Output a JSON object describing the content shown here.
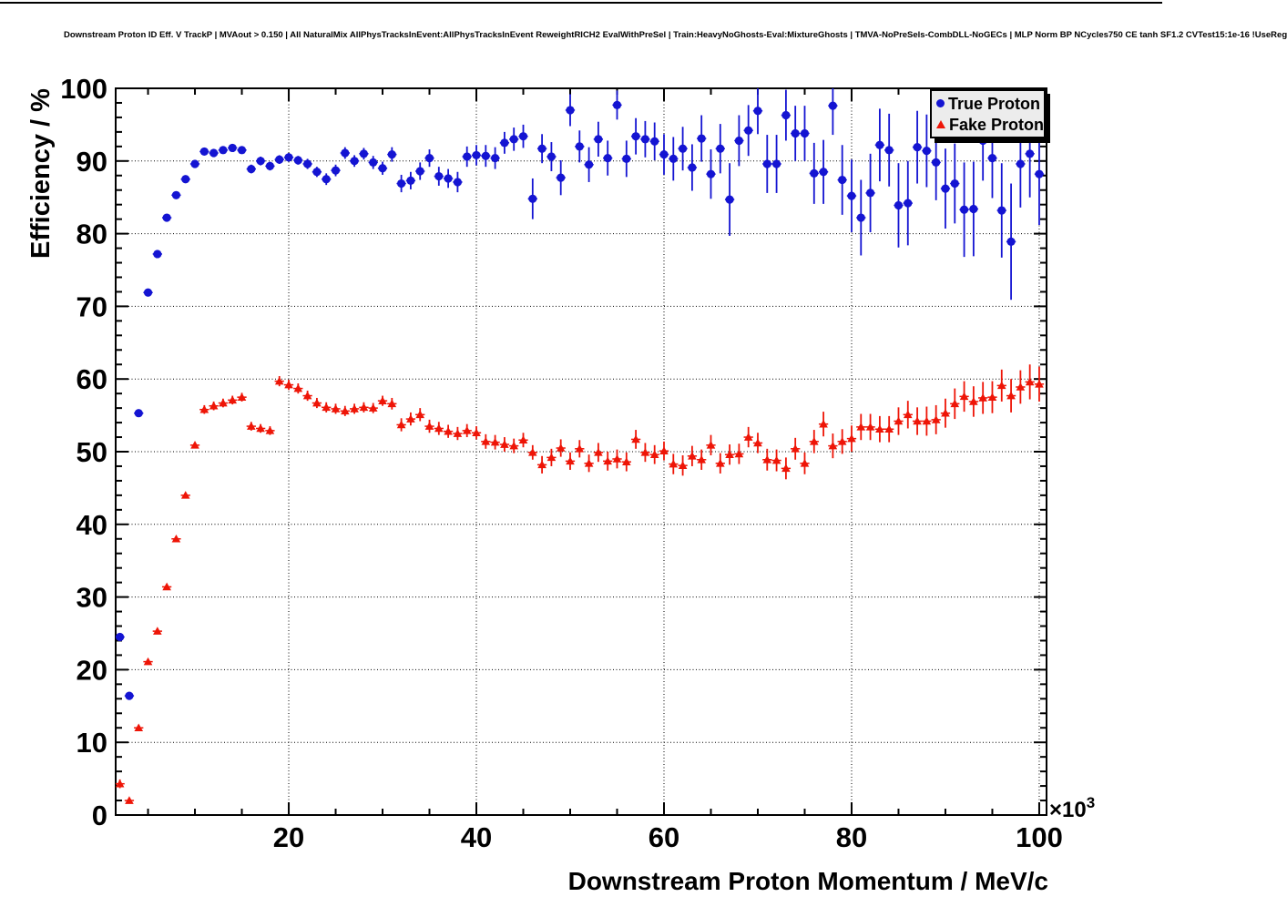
{
  "title": "Downstream Proton ID Eff. V TrackP | MVAout > 0.150 | All NaturalMix AllPhysTracksInEvent:AllPhysTracksInEvent ReweightRICH2 EvalWithPreSel | Train:HeavyNoGhosts-Eval:MixtureGhosts | TMVA-NoPreSels-CombDLL-NoGECs | MLP Norm BP NCycles750 CE tanh SF1.2 CVTest15:1e-16 !UseReg",
  "legend": {
    "entries": [
      {
        "label": "True Proton",
        "marker": "circle"
      },
      {
        "label": "Fake Proton",
        "marker": "triangle"
      }
    ]
  },
  "chart_data": {
    "type": "scatter",
    "title": "Downstream Proton ID Eff. V TrackP | MVAout > 0.150 | All NaturalMix AllPhysTracksInEvent:AllPhysTracksInEvent ReweightRICH2 EvalWithPreSel | Train:HeavyNoGhosts-Eval:MixtureGhosts | TMVA-NoPreSels-CombDLL-NoGECs | MLP Norm BP NCycles750 CE tanh SF1.2 CVTest15:1e-16 !UseReg",
    "xlabel": "Downstream Proton Momentum / MeV/c",
    "ylabel": "Efficiency / %",
    "x_scale_label": {
      "base": "×10",
      "exponent": "3"
    },
    "xlim": [
      1.55,
      100.78
    ],
    "ylim": [
      0,
      100
    ],
    "x_ticks": [
      20,
      40,
      60,
      80,
      100
    ],
    "x_minor_step": 5,
    "y_ticks": [
      0,
      10,
      20,
      30,
      40,
      50,
      60,
      70,
      80,
      90,
      100
    ],
    "y_minor_step": 2,
    "grid": true,
    "legend_position": "top-right",
    "xerr_half_width": 0.5,
    "series": [
      {
        "name": "True Proton",
        "marker": "circle",
        "color": "#1414d2",
        "points": [
          [
            2,
            24.5,
            0.5
          ],
          [
            3,
            16.4,
            0.5
          ],
          [
            4,
            55.3,
            0.5
          ],
          [
            5,
            71.9,
            0.5
          ],
          [
            6,
            77.2,
            0.5
          ],
          [
            7,
            82.2,
            0.5
          ],
          [
            8,
            85.3,
            0.4
          ],
          [
            9,
            87.5,
            0.4
          ],
          [
            10,
            89.6,
            0.4
          ],
          [
            11,
            91.3,
            0.4
          ],
          [
            12,
            91.1,
            0.4
          ],
          [
            13,
            91.5,
            0.4
          ],
          [
            14,
            91.8,
            0.4
          ],
          [
            15,
            91.5,
            0.5
          ],
          [
            16,
            88.9,
            0.6
          ],
          [
            17,
            90.0,
            0.6
          ],
          [
            18,
            89.3,
            0.6
          ],
          [
            19,
            90.2,
            0.6
          ],
          [
            20,
            90.5,
            0.6
          ],
          [
            21,
            90.1,
            0.6
          ],
          [
            22,
            89.6,
            0.7
          ],
          [
            23,
            88.5,
            0.7
          ],
          [
            24,
            87.5,
            0.8
          ],
          [
            25,
            88.7,
            0.8
          ],
          [
            26,
            91.1,
            0.8
          ],
          [
            27,
            90.0,
            0.8
          ],
          [
            28,
            91.0,
            0.8
          ],
          [
            29,
            89.8,
            0.9
          ],
          [
            30,
            89.0,
            0.9
          ],
          [
            31,
            90.9,
            1.0
          ],
          [
            32,
            86.9,
            1.2
          ],
          [
            33,
            87.3,
            1.2
          ],
          [
            34,
            88.6,
            1.2
          ],
          [
            35,
            90.4,
            1.2
          ],
          [
            36,
            87.9,
            1.3
          ],
          [
            37,
            87.6,
            1.3
          ],
          [
            38,
            87.1,
            1.4
          ],
          [
            39,
            90.6,
            1.4
          ],
          [
            40,
            90.8,
            1.4
          ],
          [
            41,
            90.7,
            1.5
          ],
          [
            42,
            90.4,
            1.5
          ],
          [
            43,
            92.5,
            1.5
          ],
          [
            44,
            93.0,
            1.6
          ],
          [
            45,
            93.4,
            1.6
          ],
          [
            46,
            84.8,
            2.8
          ],
          [
            47,
            91.7,
            2.0
          ],
          [
            48,
            90.6,
            2.0
          ],
          [
            49,
            87.7,
            2.4
          ],
          [
            50,
            97.0,
            2.2
          ],
          [
            51,
            92.0,
            2.2
          ],
          [
            52,
            89.5,
            2.4
          ],
          [
            53,
            93.0,
            2.4
          ],
          [
            54,
            90.4,
            2.4
          ],
          [
            55,
            97.7,
            2.0
          ],
          [
            56,
            90.3,
            2.5
          ],
          [
            57,
            93.4,
            2.5
          ],
          [
            58,
            93.0,
            2.5
          ],
          [
            59,
            92.7,
            2.6
          ],
          [
            60,
            90.9,
            2.8
          ],
          [
            61,
            90.3,
            3.0
          ],
          [
            62,
            91.7,
            3.0
          ],
          [
            63,
            89.1,
            3.2
          ],
          [
            64,
            93.1,
            3.2
          ],
          [
            65,
            88.2,
            3.4
          ],
          [
            66,
            91.7,
            3.4
          ],
          [
            67,
            84.7,
            5.0
          ],
          [
            68,
            92.8,
            3.5
          ],
          [
            69,
            94.2,
            3.5
          ],
          [
            70,
            96.9,
            3.2
          ],
          [
            71,
            89.6,
            4.0
          ],
          [
            72,
            89.6,
            4.0
          ],
          [
            73,
            96.3,
            3.5
          ],
          [
            74,
            93.8,
            3.8
          ],
          [
            75,
            93.8,
            3.8
          ],
          [
            76,
            88.3,
            4.2
          ],
          [
            77,
            88.5,
            4.4
          ],
          [
            78,
            97.6,
            4.0
          ],
          [
            79,
            87.4,
            4.8
          ],
          [
            80,
            85.2,
            5.0
          ],
          [
            81,
            82.2,
            5.2
          ],
          [
            82,
            85.6,
            5.4
          ],
          [
            83,
            92.2,
            5.0
          ],
          [
            84,
            91.5,
            5.0
          ],
          [
            85,
            83.9,
            5.8
          ],
          [
            86,
            84.2,
            5.8
          ],
          [
            87,
            91.9,
            5.0
          ],
          [
            88,
            91.4,
            5.0
          ],
          [
            89,
            89.8,
            5.2
          ],
          [
            90,
            86.2,
            5.5
          ],
          [
            91,
            86.9,
            5.5
          ],
          [
            92,
            83.3,
            6.5
          ],
          [
            93,
            83.4,
            6.5
          ],
          [
            94,
            92.8,
            5.5
          ],
          [
            95,
            90.4,
            5.5
          ],
          [
            96,
            83.2,
            6.5
          ],
          [
            97,
            78.9,
            8.0
          ],
          [
            98,
            89.6,
            6.0
          ],
          [
            99,
            91.0,
            6.0
          ],
          [
            100,
            88.2,
            7.0
          ]
        ]
      },
      {
        "name": "Fake Proton",
        "marker": "triangle",
        "color": "#ee1507",
        "points": [
          [
            2,
            4.3,
            0.6
          ],
          [
            3,
            2.0,
            0.4
          ],
          [
            4,
            12.0,
            0.5
          ],
          [
            5,
            21.1,
            0.5
          ],
          [
            6,
            25.3,
            0.5
          ],
          [
            7,
            31.4,
            0.5
          ],
          [
            8,
            38.0,
            0.5
          ],
          [
            9,
            44.0,
            0.5
          ],
          [
            10,
            50.9,
            0.5
          ],
          [
            11,
            55.8,
            0.6
          ],
          [
            12,
            56.3,
            0.6
          ],
          [
            13,
            56.7,
            0.6
          ],
          [
            14,
            57.1,
            0.6
          ],
          [
            15,
            57.5,
            0.6
          ],
          [
            16,
            53.5,
            0.6
          ],
          [
            17,
            53.2,
            0.6
          ],
          [
            18,
            52.9,
            0.6
          ],
          [
            19,
            59.7,
            0.7
          ],
          [
            20,
            59.2,
            0.7
          ],
          [
            21,
            58.7,
            0.7
          ],
          [
            22,
            57.7,
            0.7
          ],
          [
            23,
            56.7,
            0.7
          ],
          [
            24,
            56.1,
            0.7
          ],
          [
            25,
            55.9,
            0.7
          ],
          [
            26,
            55.6,
            0.7
          ],
          [
            27,
            55.9,
            0.7
          ],
          [
            28,
            56.1,
            0.7
          ],
          [
            29,
            56.0,
            0.7
          ],
          [
            30,
            57.0,
            0.7
          ],
          [
            31,
            56.6,
            0.8
          ],
          [
            32,
            53.7,
            0.9
          ],
          [
            33,
            54.5,
            0.9
          ],
          [
            34,
            55.1,
            0.9
          ],
          [
            35,
            53.5,
            0.9
          ],
          [
            36,
            53.2,
            0.9
          ],
          [
            37,
            52.8,
            0.9
          ],
          [
            38,
            52.5,
            0.9
          ],
          [
            39,
            52.9,
            0.9
          ],
          [
            40,
            52.6,
            0.9
          ],
          [
            41,
            51.4,
            1.0
          ],
          [
            42,
            51.3,
            1.0
          ],
          [
            43,
            51.0,
            1.0
          ],
          [
            44,
            50.8,
            1.0
          ],
          [
            45,
            51.6,
            1.0
          ],
          [
            46,
            49.9,
            1.0
          ],
          [
            47,
            48.2,
            1.2
          ],
          [
            48,
            49.2,
            1.2
          ],
          [
            49,
            50.5,
            1.2
          ],
          [
            50,
            48.7,
            1.2
          ],
          [
            51,
            50.4,
            1.2
          ],
          [
            52,
            48.4,
            1.2
          ],
          [
            53,
            49.9,
            1.3
          ],
          [
            54,
            48.7,
            1.3
          ],
          [
            55,
            49.0,
            1.3
          ],
          [
            56,
            48.6,
            1.3
          ],
          [
            57,
            51.7,
            1.3
          ],
          [
            58,
            49.9,
            1.3
          ],
          [
            59,
            49.6,
            1.3
          ],
          [
            60,
            50.1,
            1.3
          ],
          [
            61,
            48.3,
            1.4
          ],
          [
            62,
            48.1,
            1.4
          ],
          [
            63,
            49.4,
            1.4
          ],
          [
            64,
            48.9,
            1.4
          ],
          [
            65,
            50.9,
            1.4
          ],
          [
            66,
            48.4,
            1.4
          ],
          [
            67,
            49.6,
            1.4
          ],
          [
            68,
            49.7,
            1.4
          ],
          [
            69,
            52.0,
            1.4
          ],
          [
            70,
            51.2,
            1.4
          ],
          [
            71,
            48.9,
            1.5
          ],
          [
            72,
            48.8,
            1.5
          ],
          [
            73,
            47.7,
            1.5
          ],
          [
            74,
            50.4,
            1.5
          ],
          [
            75,
            48.4,
            1.5
          ],
          [
            76,
            51.4,
            1.6
          ],
          [
            77,
            53.8,
            1.7
          ],
          [
            78,
            50.8,
            1.7
          ],
          [
            79,
            51.4,
            1.7
          ],
          [
            80,
            51.8,
            1.8
          ],
          [
            81,
            53.4,
            1.8
          ],
          [
            82,
            53.4,
            1.8
          ],
          [
            83,
            53.1,
            1.8
          ],
          [
            84,
            53.1,
            1.8
          ],
          [
            85,
            54.2,
            1.9
          ],
          [
            86,
            55.1,
            1.9
          ],
          [
            87,
            54.2,
            1.9
          ],
          [
            88,
            54.2,
            2.0
          ],
          [
            89,
            54.4,
            2.0
          ],
          [
            90,
            55.3,
            2.0
          ],
          [
            91,
            56.6,
            2.1
          ],
          [
            92,
            57.6,
            2.1
          ],
          [
            93,
            56.9,
            2.1
          ],
          [
            94,
            57.4,
            2.2
          ],
          [
            95,
            57.5,
            2.2
          ],
          [
            96,
            59.1,
            2.2
          ],
          [
            97,
            57.7,
            2.3
          ],
          [
            98,
            58.9,
            2.3
          ],
          [
            99,
            59.6,
            2.4
          ],
          [
            100,
            59.3,
            2.4
          ]
        ]
      }
    ]
  }
}
